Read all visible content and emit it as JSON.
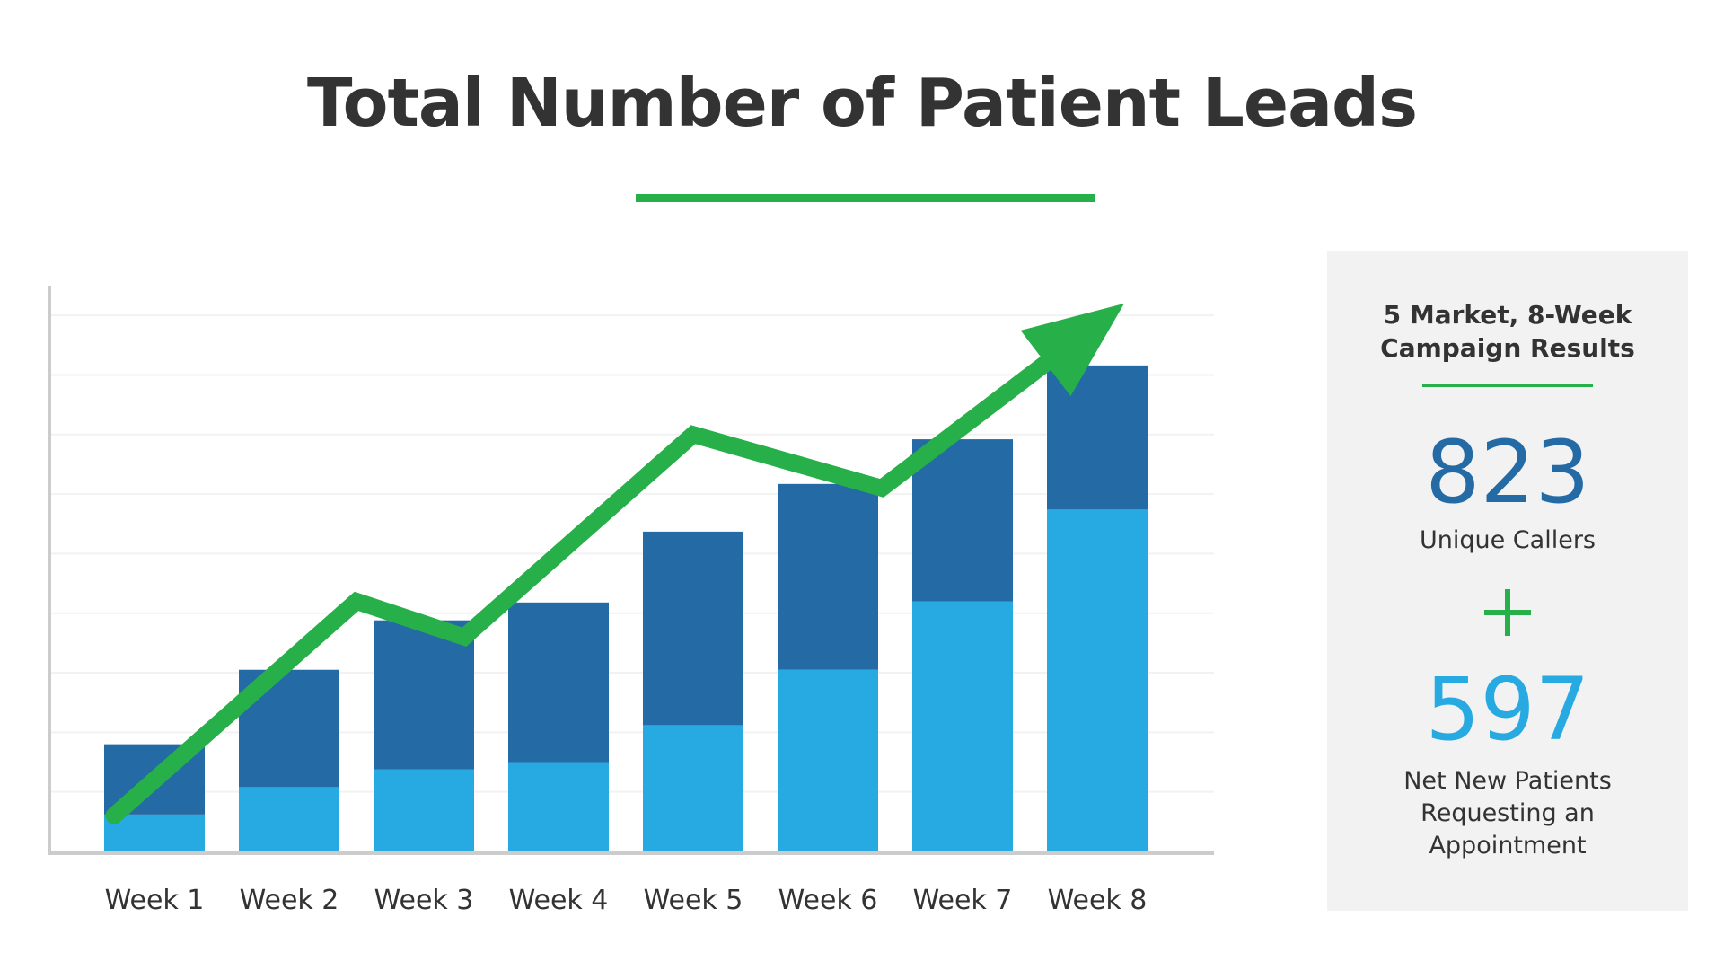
{
  "title": "Total Number of Patient Leads",
  "colors": {
    "accent_green": "#27b04a",
    "bar_dark_blue": "#246aa5",
    "bar_light_blue": "#27a9e1",
    "axis_gray": "#cccccc",
    "gridline": "#f2f2f2",
    "panel_bg": "#f2f2f2",
    "text": "#333333"
  },
  "chart_data": {
    "type": "bar",
    "stacked": true,
    "title": "Total Number of Patient Leads",
    "xlabel": "",
    "ylabel": "",
    "categories": [
      "Week 1",
      "Week 2",
      "Week 3",
      "Week 4",
      "Week 5",
      "Week 6",
      "Week 7",
      "Week 8"
    ],
    "ylim": [
      0,
      9.5
    ],
    "grid": true,
    "y_tick_labels_shown": false,
    "series": [
      {
        "color": "#27a9e1",
        "values": [
          0.62,
          1.08,
          1.38,
          1.5,
          2.12,
          3.05,
          4.2,
          5.74
        ]
      },
      {
        "color": "#246aa5",
        "values": [
          1.18,
          1.97,
          2.5,
          2.68,
          3.25,
          3.12,
          2.72,
          2.42
        ]
      }
    ],
    "trend_arrow": {
      "color": "#27b04a",
      "points": [
        [
          0.7,
          0.6
        ],
        [
          2.5,
          4.2
        ],
        [
          3.3,
          3.6
        ],
        [
          5.0,
          7.0
        ],
        [
          6.4,
          6.1
        ],
        [
          8.2,
          9.2
        ]
      ]
    }
  },
  "panel": {
    "heading_lines": [
      "5 Market, 8-Week",
      "Campaign Results"
    ],
    "callers_count": "823",
    "callers_label": "Unique Callers",
    "plus_icon": "plus-icon",
    "patients_count": "597",
    "patients_label_lines": [
      "Net New Patients",
      "Requesting an",
      "Appointment"
    ]
  }
}
